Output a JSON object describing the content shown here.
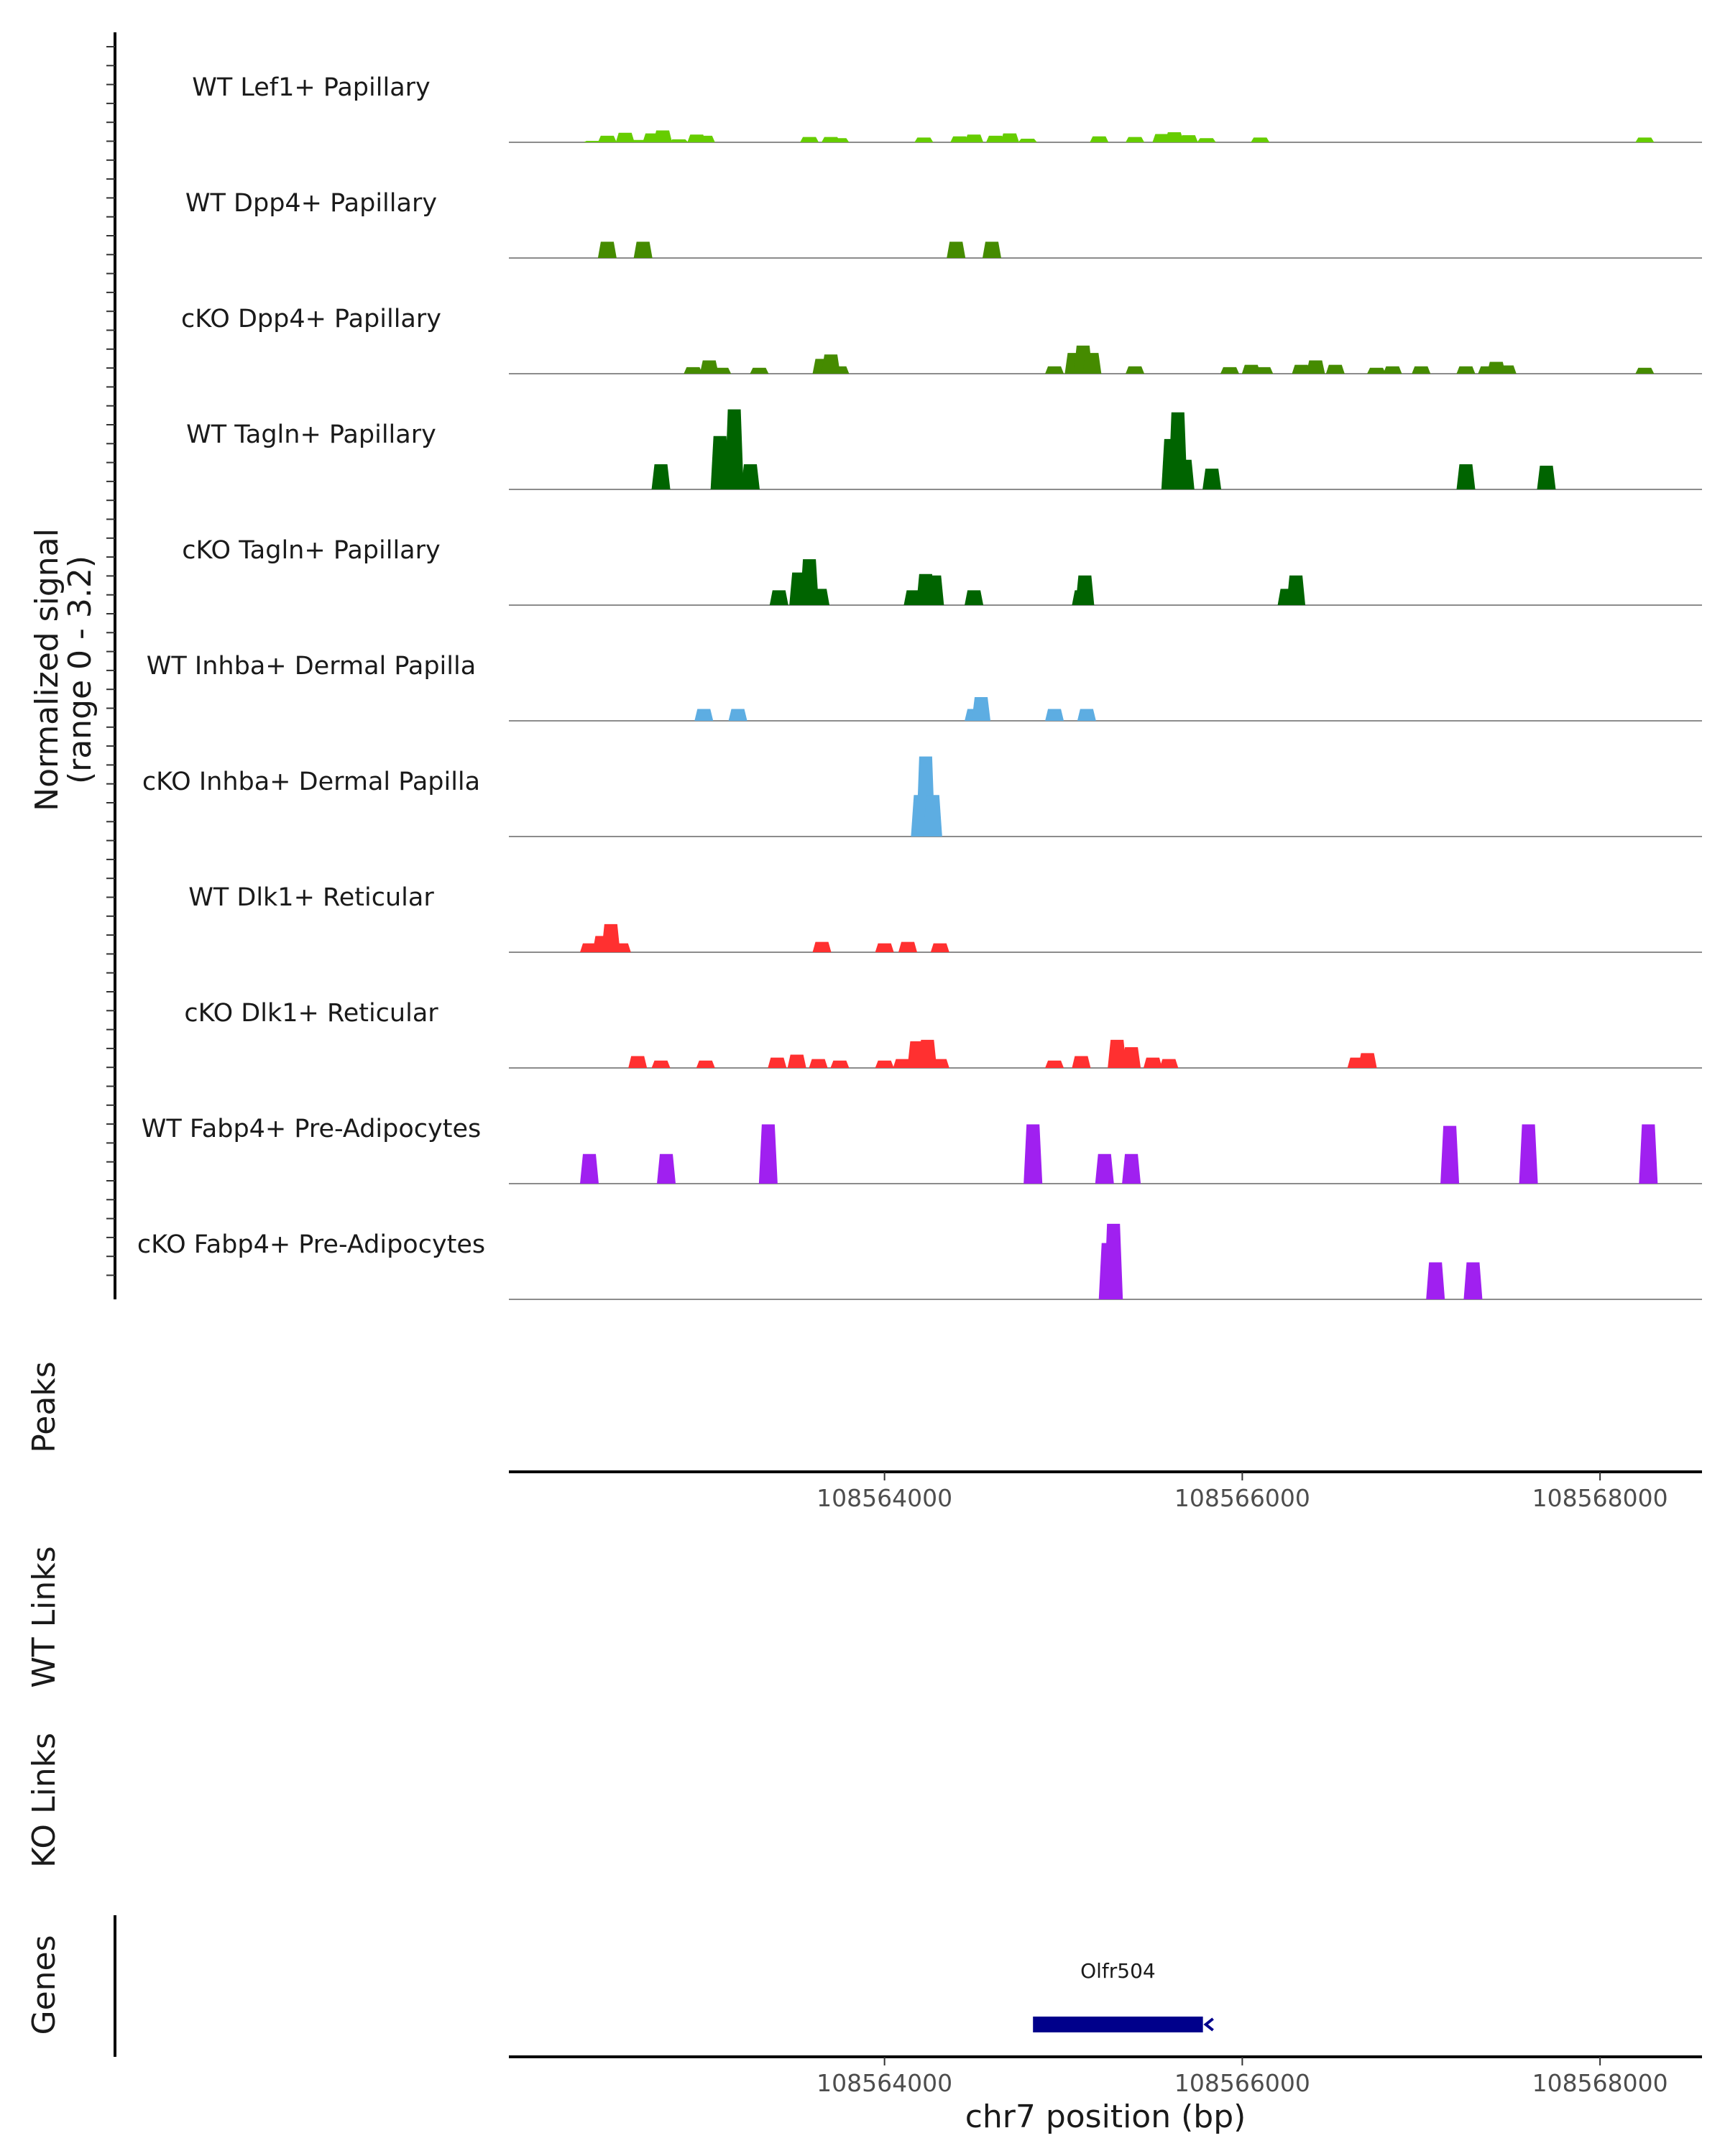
{
  "chart_data": {
    "type": "area",
    "title": "",
    "region": "chr7",
    "xlabel": "chr7 position (bp)",
    "ylabel": "Normalized signal",
    "ylabel_range": "(range 0 - 3.2)",
    "ylim": [
      0,
      3.2
    ],
    "xlim": [
      108561900,
      108568570
    ],
    "xticks": [
      "108564000",
      "108566000",
      "108568000"
    ],
    "panels": {
      "peaks": "Peaks",
      "wt_links": "WT Links",
      "ko_links": "KO Links",
      "genes": "Genes"
    },
    "gene": {
      "name": "Olfr504",
      "start": 108564830,
      "end": 108565780,
      "strand": "-",
      "color": "#00008b"
    },
    "series": [
      {
        "name": "WT Lef1+ Papillary",
        "color": "#66cd00",
        "points": [
          [
            108562370,
            0.05
          ],
          [
            108562450,
            0.22
          ],
          [
            108562550,
            0.32
          ],
          [
            108562620,
            0.08
          ],
          [
            108562700,
            0.3
          ],
          [
            108562760,
            0.4
          ],
          [
            108562850,
            0.1
          ],
          [
            108562950,
            0.26
          ],
          [
            108563000,
            0.22
          ],
          [
            108563580,
            0.18
          ],
          [
            108563700,
            0.18
          ],
          [
            108563750,
            0.14
          ],
          [
            108564220,
            0.16
          ],
          [
            108564420,
            0.2
          ],
          [
            108564500,
            0.26
          ],
          [
            108564620,
            0.22
          ],
          [
            108564700,
            0.3
          ],
          [
            108564800,
            0.12
          ],
          [
            108565200,
            0.2
          ],
          [
            108565400,
            0.18
          ],
          [
            108565550,
            0.28
          ],
          [
            108565620,
            0.34
          ],
          [
            108565700,
            0.24
          ],
          [
            108565800,
            0.14
          ],
          [
            108566100,
            0.16
          ],
          [
            108568250,
            0.16
          ]
        ]
      },
      {
        "name": "WT Dpp4+ Papillary",
        "color": "#458b00",
        "points": [
          [
            108562450,
            0.55
          ],
          [
            108562650,
            0.55
          ],
          [
            108564400,
            0.55
          ],
          [
            108564600,
            0.55
          ]
        ]
      },
      {
        "name": "cKO Dpp4+ Papillary",
        "color": "#458b00",
        "points": [
          [
            108562930,
            0.22
          ],
          [
            108563020,
            0.45
          ],
          [
            108563090,
            0.2
          ],
          [
            108563300,
            0.2
          ],
          [
            108563650,
            0.5
          ],
          [
            108563700,
            0.65
          ],
          [
            108563750,
            0.25
          ],
          [
            108564950,
            0.25
          ],
          [
            108565060,
            0.7
          ],
          [
            108565110,
            0.95
          ],
          [
            108565160,
            0.7
          ],
          [
            108565400,
            0.25
          ],
          [
            108565930,
            0.22
          ],
          [
            108566050,
            0.3
          ],
          [
            108566120,
            0.22
          ],
          [
            108566330,
            0.3
          ],
          [
            108566410,
            0.45
          ],
          [
            108566520,
            0.3
          ],
          [
            108566750,
            0.2
          ],
          [
            108566840,
            0.25
          ],
          [
            108567000,
            0.25
          ],
          [
            108567250,
            0.25
          ],
          [
            108567370,
            0.25
          ],
          [
            108567420,
            0.4
          ],
          [
            108567480,
            0.28
          ],
          [
            108568250,
            0.2
          ]
        ]
      },
      {
        "name": "WT Tagln+ Papillary",
        "color": "#006400",
        "points": [
          [
            108562750,
            0.85
          ],
          [
            108563080,
            1.8
          ],
          [
            108563160,
            2.7
          ],
          [
            108563250,
            0.85
          ],
          [
            108565600,
            1.7
          ],
          [
            108565640,
            2.6
          ],
          [
            108565680,
            1.0
          ],
          [
            108565830,
            0.7
          ],
          [
            108567250,
            0.85
          ],
          [
            108567700,
            0.8
          ]
        ]
      },
      {
        "name": "cKO Tagln+ Papillary",
        "color": "#006400",
        "points": [
          [
            108563410,
            0.5
          ],
          [
            108563520,
            1.1
          ],
          [
            108563580,
            1.55
          ],
          [
            108563640,
            0.55
          ],
          [
            108564160,
            0.5
          ],
          [
            108564230,
            1.05
          ],
          [
            108564280,
            1.0
          ],
          [
            108564500,
            0.5
          ],
          [
            108565100,
            0.5
          ],
          [
            108565120,
            1.0
          ],
          [
            108566250,
            0.55
          ],
          [
            108566300,
            1.0
          ]
        ]
      },
      {
        "name": "WT Inhba+ Dermal Papilla",
        "color": "#5dade2",
        "points": [
          [
            108562990,
            0.4
          ],
          [
            108563180,
            0.4
          ],
          [
            108564500,
            0.4
          ],
          [
            108564540,
            0.8
          ],
          [
            108564950,
            0.4
          ],
          [
            108565130,
            0.4
          ]
        ]
      },
      {
        "name": "cKO Inhba+ Dermal Papilla",
        "color": "#5dade2",
        "points": [
          [
            108564200,
            1.4
          ],
          [
            108564230,
            2.7
          ],
          [
            108564270,
            1.4
          ]
        ]
      },
      {
        "name": "WT Dlk1+ Reticular",
        "color": "#ff3030",
        "points": [
          [
            108562350,
            0.3
          ],
          [
            108562420,
            0.55
          ],
          [
            108562470,
            0.95
          ],
          [
            108562530,
            0.3
          ],
          [
            108563650,
            0.35
          ],
          [
            108564000,
            0.3
          ],
          [
            108564130,
            0.35
          ],
          [
            108564310,
            0.3
          ]
        ]
      },
      {
        "name": "cKO Dlk1+ Reticular",
        "color": "#ff3030",
        "points": [
          [
            108562620,
            0.4
          ],
          [
            108562750,
            0.25
          ],
          [
            108563000,
            0.25
          ],
          [
            108563400,
            0.35
          ],
          [
            108563510,
            0.45
          ],
          [
            108563630,
            0.3
          ],
          [
            108563750,
            0.25
          ],
          [
            108564000,
            0.25
          ],
          [
            108564100,
            0.3
          ],
          [
            108564180,
            0.9
          ],
          [
            108564240,
            0.95
          ],
          [
            108564310,
            0.3
          ],
          [
            108564950,
            0.25
          ],
          [
            108565100,
            0.4
          ],
          [
            108565300,
            0.95
          ],
          [
            108565380,
            0.7
          ],
          [
            108565500,
            0.35
          ],
          [
            108565590,
            0.3
          ],
          [
            108566640,
            0.35
          ],
          [
            108566700,
            0.5
          ]
        ]
      },
      {
        "name": "WT Fabp4+ Pre-Adipocytes",
        "color": "#a020f0",
        "points": [
          [
            108562350,
            1.0
          ],
          [
            108562780,
            1.0
          ],
          [
            108563350,
            2.0
          ],
          [
            108564830,
            2.0
          ],
          [
            108565230,
            1.0
          ],
          [
            108565380,
            1.0
          ],
          [
            108567160,
            1.95
          ],
          [
            108567600,
            2.0
          ],
          [
            108568270,
            2.0
          ]
        ]
      },
      {
        "name": "cKO Fabp4+ Pre-Adipocytes",
        "color": "#a020f0",
        "points": [
          [
            108565250,
            1.9
          ],
          [
            108565280,
            2.55
          ],
          [
            108567080,
            1.25
          ],
          [
            108567290,
            1.25
          ]
        ]
      }
    ]
  }
}
